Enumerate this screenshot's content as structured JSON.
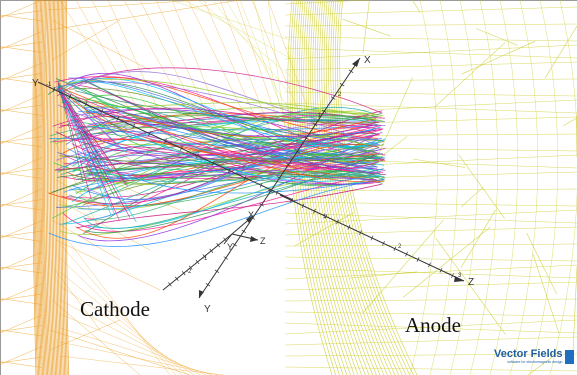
{
  "labels": {
    "cathode": "Cathode",
    "anode": "Anode"
  },
  "brand": {
    "name": "Vector Fields",
    "tagline": "software for electromagnetic design"
  },
  "axes": {
    "main_y_label": "Y",
    "main_x_label": "X",
    "main_z_label": "Z",
    "z_ticks": [
      "1",
      "2",
      "3"
    ],
    "x_ticks": [
      "1",
      "2"
    ],
    "y_ticks": [
      "-1",
      "-2"
    ],
    "y_upper_ticks": [
      "-1"
    ],
    "triad_labels": [
      "X",
      "Y",
      "Z"
    ]
  },
  "colors": {
    "cathode_mesh": "#f0a020",
    "cathode_dense": "#e8900c",
    "anode_mesh": "#c8c81e",
    "axis": "#333333",
    "brand": "#1f5fa0",
    "trajectories": [
      "#2e8b57",
      "#3cb371",
      "#9acd32",
      "#ff1493",
      "#d02090",
      "#9370db",
      "#4169e1",
      "#20b2aa",
      "#ff4500",
      "#00bfff",
      "#8a2be2",
      "#6b8e23",
      "#c71585",
      "#1e90ff",
      "#32cd32"
    ]
  }
}
